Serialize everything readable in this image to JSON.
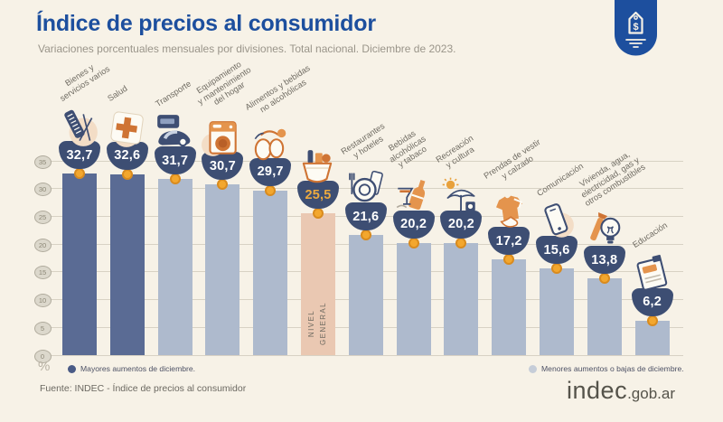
{
  "header": {
    "title": "Índice de precios al consumidor",
    "subtitle": "Variaciones porcentuales mensuales por divisiones. Total nacional. Diciembre de 2023.",
    "badge_icon": "price-tag-icon"
  },
  "chart_data": {
    "type": "bar",
    "title": "Índice de precios al consumidor",
    "subtitle": "Variaciones porcentuales mensuales por divisiones. Total nacional. Diciembre de 2023.",
    "unit": "%",
    "ylim": [
      0,
      35
    ],
    "yticks": [
      0,
      5,
      10,
      15,
      20,
      25,
      30,
      35
    ],
    "grid": true,
    "legend_position": "bottom",
    "categories": [
      "Bienes y servicios varios",
      "Salud",
      "Transporte",
      "Equipamiento y mantenimiento del hogar",
      "Alimentos y bebidas no alcohólicas",
      "Nivel general",
      "Restaurantes y hoteles",
      "Bebidas alcohólicas y tabaco",
      "Recreación y cultura",
      "Prendas de vestir y calzado",
      "Comunicación",
      "Vivienda, agua, electricidad, gas y otros combustibles",
      "Educación"
    ],
    "values": [
      32.7,
      32.6,
      31.7,
      30.7,
      29.7,
      25.5,
      21.6,
      20.2,
      20.2,
      17.2,
      15.6,
      13.8,
      6.2
    ],
    "items": [
      {
        "category": "Bienes y servicios varios",
        "label_lines": [
          "Bienes y",
          "servicios varios"
        ],
        "value": 32.7,
        "display_value": "32,7",
        "icon": "personal-care-icon",
        "group": "mayores"
      },
      {
        "category": "Salud",
        "label_lines": [
          "Salud"
        ],
        "value": 32.6,
        "display_value": "32,6",
        "icon": "health-cross-icon",
        "group": "mayores"
      },
      {
        "category": "Transporte",
        "label_lines": [
          "Transporte"
        ],
        "value": 31.7,
        "display_value": "31,7",
        "icon": "transport-icon",
        "group": "menores"
      },
      {
        "category": "Equipamiento y mantenimiento del hogar",
        "label_lines": [
          "Equipamiento",
          "y mantenimiento",
          "del hogar"
        ],
        "value": 30.7,
        "display_value": "30,7",
        "icon": "appliance-icon",
        "group": "menores"
      },
      {
        "category": "Alimentos y bebidas no alcohólicas",
        "label_lines": [
          "Alimentos y bebidas",
          "no alcohólicas"
        ],
        "value": 29.7,
        "display_value": "29,7",
        "icon": "food-icon",
        "group": "menores"
      },
      {
        "category": "Nivel general",
        "label_lines": [],
        "inner_label_lines": [
          "NIVEL",
          "GENERAL"
        ],
        "value": 25.5,
        "display_value": "25,5",
        "icon": "shopping-basket-icon",
        "group": "nivel-general"
      },
      {
        "category": "Restaurantes y hoteles",
        "label_lines": [
          "Restaurantes",
          "y hoteles"
        ],
        "value": 21.6,
        "display_value": "21,6",
        "icon": "restaurant-icon",
        "group": "menores"
      },
      {
        "category": "Bebidas alcohólicas y tabaco",
        "label_lines": [
          "Bebidas",
          "alcohólicas",
          "y tabaco"
        ],
        "value": 20.2,
        "display_value": "20,2",
        "icon": "drinks-icon",
        "group": "menores"
      },
      {
        "category": "Recreación y cultura",
        "label_lines": [
          "Recreación",
          "y cultura"
        ],
        "value": 20.2,
        "display_value": "20,2",
        "icon": "recreation-icon",
        "group": "menores"
      },
      {
        "category": "Prendas de vestir y calzado",
        "label_lines": [
          "Prendas de vestir",
          "y calzado"
        ],
        "value": 17.2,
        "display_value": "17,2",
        "icon": "clothing-icon",
        "group": "menores"
      },
      {
        "category": "Comunicación",
        "label_lines": [
          "Comunicación"
        ],
        "value": 15.6,
        "display_value": "15,6",
        "icon": "smartphone-icon",
        "group": "menores"
      },
      {
        "category": "Vivienda, agua, electricidad, gas y otros combustibles",
        "label_lines": [
          "Vivienda, agua,",
          "electricidad, gas y",
          "otros combustibles"
        ],
        "value": 13.8,
        "display_value": "13,8",
        "icon": "utilities-icon",
        "group": "menores"
      },
      {
        "category": "Educación",
        "label_lines": [
          "Educación"
        ],
        "value": 6.2,
        "display_value": "6,2",
        "icon": "education-icon",
        "group": "menores"
      }
    ],
    "legend": [
      {
        "label": "Mayores aumentos de diciembre.",
        "group": "mayores"
      },
      {
        "label": "Menores aumentos o bajas de diciembre.",
        "group": "menores"
      }
    ]
  },
  "colors": {
    "background": "#f7f2e7",
    "title": "#1d4f9e",
    "subtitle": "#9a958a",
    "bar_mayores": "#5a6b94",
    "bar_menores": "#aebacd",
    "bar_nivel_general": "#eac8b2",
    "value_bubble": "#3d4e73",
    "value_text": "#ffffff",
    "value_text_nivel_general": "#edaa3f",
    "dot_fill": "#f3a72e",
    "dot_ring": "#d98b1e",
    "gridline": "#d8d2c4",
    "tick_fill": "#dcd8cc",
    "tick_border": "#b0ab9d",
    "tick_text": "#8b8675",
    "category_label": "#6f6b62",
    "inner_label": "#6e6a60",
    "legend_text": "#4d5165",
    "legend_mayores_dot": "#4a5b86",
    "legend_menores_dot": "#c6cdd8",
    "footer_text": "#6b6861",
    "logo_text": "#55534a",
    "accent_orange": "#cf7434",
    "accent_navy": "#3e4e73"
  },
  "footer": {
    "source": "Fuente: INDEC - Índice de precios al consumidor",
    "logo_text": "indec",
    "logo_suffix": ".gob.ar"
  }
}
